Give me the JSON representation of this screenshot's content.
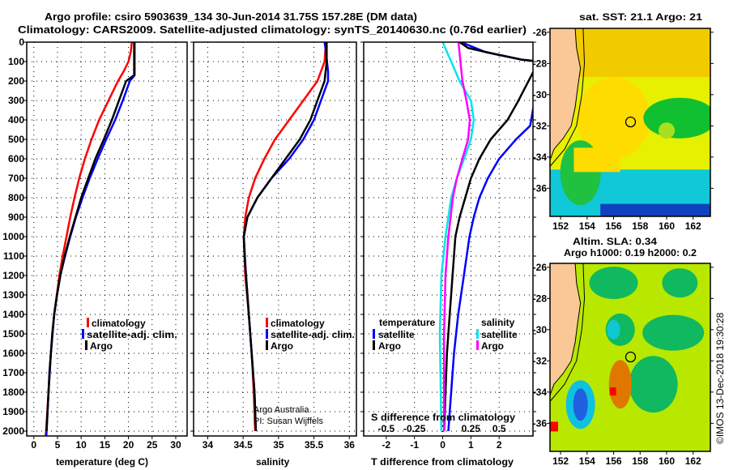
{
  "title_line1": "Argo profile: csiro 5903639_134 30-Jun-2014 31.75S 157.28E (DM data)",
  "title_line2": "Climatology: CARS2009. Satellite-adjusted climatology: synTS_20140630.nc (0.76d earlier)",
  "credit_line1": "Argo Australia",
  "credit_line2": "PI: Susan Wijffels",
  "timestamp": "©IMOS 13-Dec-2018 19:30:28",
  "colors": {
    "climatology": "#ff0000",
    "satellite": "#0000ff",
    "argo": "#000000",
    "sal_satellite": "#00e5ee",
    "sal_argo": "#ff00ff"
  },
  "chart_data": [
    {
      "type": "line",
      "name": "temperature",
      "xlabel": "temperature (deg C)",
      "ylabel": "",
      "xlim": [
        -1.5,
        32.4
      ],
      "ylim": [
        0,
        2025
      ],
      "xticks": [
        0,
        5,
        10,
        15,
        20,
        25,
        30
      ],
      "yticks": [
        0,
        100,
        200,
        300,
        400,
        500,
        600,
        700,
        800,
        900,
        1000,
        1100,
        1200,
        1300,
        1400,
        1500,
        1600,
        1700,
        1800,
        1900,
        2000
      ],
      "grid": true,
      "legend": {
        "placement": "bottom-center",
        "entries": [
          "climatology",
          "satellite-adj. clim.",
          "Argo"
        ]
      },
      "series": [
        {
          "name": "climatology",
          "color": "#ff0000",
          "depth": [
            0,
            50,
            100,
            150,
            200,
            300,
            400,
            500,
            600,
            700,
            800,
            900,
            1000,
            1100,
            1200,
            1400,
            1600,
            1800,
            2000,
            2025
          ],
          "values": [
            20.7,
            20.5,
            20,
            19,
            17.8,
            15.8,
            13.8,
            12.2,
            10.8,
            9.6,
            8.6,
            7.7,
            6.9,
            6.1,
            5.4,
            4.3,
            3.6,
            3.1,
            2.6,
            2.5
          ]
        },
        {
          "name": "satellite-adj. clim.",
          "color": "#0000ff",
          "depth": [
            0,
            170,
            200,
            300,
            400,
            500,
            600,
            700,
            800,
            900,
            1000,
            1100,
            1200,
            1300,
            1400,
            1600,
            1800,
            2000,
            2025
          ],
          "values": [
            21.3,
            21.3,
            20.3,
            18.8,
            17.2,
            15.3,
            13.5,
            11.8,
            10.3,
            8.9,
            7.7,
            6.6,
            5.6,
            4.9,
            4.3,
            3.6,
            3.1,
            2.7,
            2.65
          ]
        },
        {
          "name": "Argo",
          "color": "#000000",
          "depth": [
            0,
            170,
            200,
            300,
            400,
            500,
            600,
            700,
            800,
            900,
            1000,
            1100,
            1200,
            1300,
            1400,
            1500,
            1600,
            1700,
            1800,
            1900,
            2000
          ],
          "values": [
            21.2,
            21.2,
            19.5,
            18,
            16.5,
            14.8,
            13,
            11.5,
            10,
            8.8,
            7.6,
            6.5,
            5.6,
            4.9,
            4.3,
            3.9,
            3.6,
            3.3,
            3.1,
            2.9,
            2.7
          ]
        }
      ]
    },
    {
      "type": "line",
      "name": "salinity",
      "xlabel": "salinity",
      "xlim": [
        33.8,
        36.1
      ],
      "ylim": [
        0,
        2025
      ],
      "xticks": [
        34,
        34.5,
        35,
        35.5,
        36
      ],
      "grid": true,
      "legend": {
        "placement": "bottom-center",
        "entries": [
          "climatology",
          "satellite-adj. clim.",
          "Argo"
        ]
      },
      "series": [
        {
          "name": "climatology",
          "color": "#ff0000",
          "depth": [
            0,
            100,
            200,
            300,
            400,
            500,
            600,
            700,
            800,
            900,
            1000,
            1200,
            1400,
            1600,
            1800,
            2000
          ],
          "values": [
            35.67,
            35.65,
            35.55,
            35.35,
            35.15,
            34.95,
            34.8,
            34.67,
            34.58,
            34.53,
            34.51,
            34.53,
            34.58,
            34.62,
            34.65,
            34.67
          ]
        },
        {
          "name": "satellite-adj. clim.",
          "color": "#0000ff",
          "depth": [
            0,
            50,
            150,
            200,
            300,
            400,
            500,
            600,
            700,
            800,
            900,
            1000,
            1200,
            1400,
            1600,
            1800,
            2000
          ],
          "values": [
            35.65,
            35.67,
            35.7,
            35.7,
            35.6,
            35.5,
            35.35,
            35.15,
            34.9,
            34.7,
            34.56,
            34.51,
            34.54,
            34.58,
            34.62,
            34.66,
            34.68
          ]
        },
        {
          "name": "Argo",
          "color": "#000000",
          "depth": [
            0,
            100,
            200,
            300,
            400,
            500,
            600,
            700,
            800,
            900,
            1000,
            1100,
            1200,
            1400,
            1600,
            1800,
            2000
          ],
          "values": [
            35.68,
            35.68,
            35.65,
            35.55,
            35.45,
            35.3,
            35.1,
            34.9,
            34.7,
            34.56,
            34.51,
            34.52,
            34.54,
            34.58,
            34.62,
            34.66,
            34.68
          ]
        }
      ]
    },
    {
      "type": "line",
      "name": "difference",
      "xlabel": "T difference from climatology",
      "x2label": "S difference from climatology",
      "xlim": [
        -2.8,
        3.2
      ],
      "x2lim": [
        -0.7,
        0.8
      ],
      "ylim": [
        0,
        2025
      ],
      "xticks": [
        -2,
        -1,
        0,
        1,
        2
      ],
      "x2ticks": [
        -0.5,
        -0.25,
        0,
        0.25,
        0.5
      ],
      "grid": true,
      "legend": {
        "placement": "bottom",
        "temperature_title": "temperature",
        "salinity_title": "salinity",
        "entries": [
          "satellite",
          "Argo"
        ]
      },
      "series": [
        {
          "name": "T satellite",
          "axis": "T",
          "color": "#0000ff",
          "depth": [
            0,
            50,
            90,
            100,
            430,
            500,
            600,
            700,
            800,
            900,
            1000,
            1200,
            1400,
            1600,
            1800,
            2000
          ],
          "values": [
            0.65,
            1.5,
            2.8,
            3.5,
            3.1,
            2.6,
            2.0,
            1.6,
            1.3,
            1.1,
            0.95,
            0.75,
            0.55,
            0.4,
            0.3,
            0.2
          ]
        },
        {
          "name": "T Argo",
          "axis": "T",
          "color": "#000000",
          "depth": [
            0,
            30,
            60,
            90,
            100,
            310,
            400,
            500,
            600,
            700,
            800,
            900,
            1000,
            1200,
            1400,
            1600,
            1800,
            2000
          ],
          "values": [
            0.6,
            0.9,
            1.8,
            2.8,
            3.4,
            2.65,
            2.3,
            1.7,
            1.3,
            1.0,
            0.8,
            0.6,
            0.45,
            0.35,
            0.25,
            0.15,
            0.1,
            0.05
          ]
        },
        {
          "name": "S satellite",
          "axis": "S",
          "color": "#00e5ee",
          "depth": [
            0,
            100,
            200,
            300,
            400,
            500,
            600,
            700,
            800,
            1000,
            1200,
            1500,
            2000
          ],
          "values": [
            0,
            0.075,
            0.15,
            0.25,
            0.275,
            0.25,
            0.19,
            0.125,
            0.075,
            0.025,
            -0.012,
            -0.025,
            -0.012
          ]
        },
        {
          "name": "S Argo",
          "axis": "S",
          "color": "#ff00ff",
          "depth": [
            0,
            200,
            300,
            400,
            500,
            600,
            700,
            800,
            1000,
            1200,
            1500,
            2000
          ],
          "values": [
            0.14,
            0.175,
            0.21,
            0.24,
            0.225,
            0.175,
            0.125,
            0.09,
            0.05,
            0.025,
            0.012,
            0.012
          ]
        }
      ]
    }
  ],
  "maps": [
    {
      "title": "sat. SST: 21.1 Argo: 21",
      "subtitle": "",
      "profile_lon": 157.28,
      "profile_lat": -31.75,
      "lon_ticks": [
        152,
        154,
        156,
        158,
        160,
        162
      ],
      "lat_ticks": [
        -26,
        -28,
        -30,
        -32,
        -34,
        -36
      ]
    },
    {
      "title": "Altim. SLA: 0.34",
      "subtitle": "Argo h1000: 0.19 h2000: 0.2",
      "profile_lon": 157.28,
      "profile_lat": -31.75,
      "lon_ticks": [
        152,
        154,
        156,
        158,
        160,
        162
      ],
      "lat_ticks": [
        -26,
        -28,
        -30,
        -32,
        -34,
        -36
      ]
    }
  ]
}
